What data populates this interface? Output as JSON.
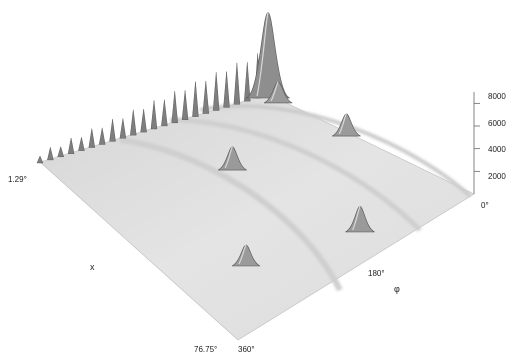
{
  "chart_data": {
    "type": "surface",
    "title": "",
    "axes": {
      "theta": {
        "label": "x",
        "tick_labels": [
          "1.29°",
          "76.75°"
        ],
        "range": [
          1.29,
          76.75
        ]
      },
      "phi": {
        "label": "φ",
        "tick_labels": [
          "0°",
          "180°",
          "360°"
        ],
        "range": [
          0,
          360
        ]
      },
      "z": {
        "tick_labels": [
          "2000",
          "4000",
          "6000",
          "8000"
        ],
        "range": [
          0,
          9000
        ]
      }
    },
    "peaks": [
      {
        "theta": 1.29,
        "phi": 0,
        "z": 7200
      },
      {
        "theta": 5,
        "phi": 0,
        "z": 1500
      },
      {
        "theta": 30,
        "phi": 180,
        "z": 1700
      },
      {
        "theta": 30,
        "phi": 0,
        "z": 1600
      },
      {
        "theta": 76.75,
        "phi": 180,
        "z": 1900
      },
      {
        "theta": 76.75,
        "phi": 360,
        "z": 1500
      }
    ],
    "grid": false,
    "legend": "none"
  }
}
